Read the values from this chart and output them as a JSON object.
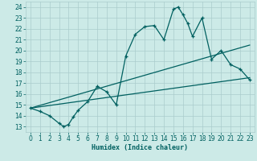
{
  "xlabel": "Humidex (Indice chaleur)",
  "xlim": [
    -0.5,
    23.5
  ],
  "ylim": [
    12.5,
    24.5
  ],
  "xticks": [
    0,
    1,
    2,
    3,
    4,
    5,
    6,
    7,
    8,
    9,
    10,
    11,
    12,
    13,
    14,
    15,
    16,
    17,
    18,
    19,
    20,
    21,
    22,
    23
  ],
  "yticks": [
    13,
    14,
    15,
    16,
    17,
    18,
    19,
    20,
    21,
    22,
    23,
    24
  ],
  "bg_color": "#cceae7",
  "grid_color": "#aacccc",
  "line_color": "#006060",
  "main_x": [
    0,
    1,
    2,
    3,
    3.5,
    4,
    4.5,
    5,
    6,
    7,
    8,
    9,
    10,
    11,
    12,
    13,
    14,
    15,
    15.5,
    16,
    16.5,
    17,
    18,
    19,
    20,
    21,
    22,
    23
  ],
  "main_y": [
    14.7,
    14.4,
    14.0,
    13.3,
    13.0,
    13.2,
    13.9,
    14.5,
    15.3,
    16.7,
    16.2,
    15.0,
    19.5,
    21.5,
    22.2,
    22.3,
    21.0,
    23.8,
    24.0,
    23.3,
    22.5,
    21.3,
    23.0,
    19.2,
    20.0,
    18.7,
    18.3,
    17.3
  ],
  "line1_x": [
    0,
    23
  ],
  "line1_y": [
    14.7,
    17.5
  ],
  "line2_x": [
    0,
    23
  ],
  "line2_y": [
    14.7,
    20.5
  ],
  "marker_size": 3.0,
  "linewidth": 0.9
}
